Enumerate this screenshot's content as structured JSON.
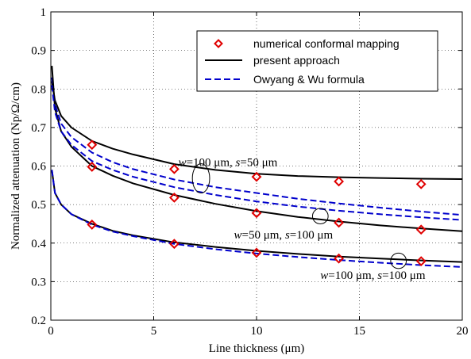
{
  "chart_data": {
    "type": "line",
    "xlabel": "Line thickness (μm)",
    "ylabel": "Normalized attenuation (Np/Ω/cm)",
    "xlim": [
      0,
      20
    ],
    "ylim": [
      0.2,
      1.0
    ],
    "xticks": [
      0,
      5,
      10,
      15,
      20
    ],
    "yticks": [
      0.2,
      0.3,
      0.4,
      0.5,
      0.6,
      0.7,
      0.8,
      0.9,
      1.0
    ],
    "xtick_labels": [
      "0",
      "5",
      "10",
      "15",
      "20"
    ],
    "ytick_labels": [
      "0.2",
      "0.3",
      "0.4",
      "0.5",
      "0.6",
      "0.7",
      "0.8",
      "0.9",
      "1"
    ],
    "grid": "dotted",
    "legend_position": "top-right",
    "legend": [
      {
        "label": "numerical conformal mapping",
        "marker": "diamond",
        "color": "#e00000"
      },
      {
        "label": "present approach",
        "line": "solid",
        "color": "#000000"
      },
      {
        "label": "Owyang & Wu formula",
        "line": "dashed",
        "color": "#0000cc"
      }
    ],
    "series": [
      {
        "group": "A",
        "kind": "present approach",
        "color": "#000000",
        "dash": "solid",
        "x": [
          0.05,
          0.2,
          0.5,
          1,
          2,
          3,
          4,
          6,
          8,
          10,
          12,
          14,
          16,
          18,
          20
        ],
        "y": [
          0.82,
          0.77,
          0.73,
          0.7,
          0.665,
          0.645,
          0.63,
          0.605,
          0.59,
          0.58,
          0.574,
          0.571,
          0.569,
          0.567,
          0.566
        ]
      },
      {
        "group": "A",
        "kind": "Owyang & Wu formula",
        "color": "#0000cc",
        "dash": "dashed",
        "x": [
          0.05,
          0.2,
          0.5,
          1,
          2,
          3,
          4,
          6,
          8,
          10,
          12,
          14,
          16,
          18,
          20
        ],
        "y": [
          0.83,
          0.76,
          0.71,
          0.675,
          0.635,
          0.61,
          0.592,
          0.565,
          0.545,
          0.53,
          0.515,
          0.503,
          0.492,
          0.482,
          0.473
        ]
      },
      {
        "group": "B",
        "kind": "present approach",
        "color": "#000000",
        "dash": "solid",
        "x": [
          0.05,
          0.2,
          0.5,
          1,
          2,
          3,
          4,
          6,
          8,
          10,
          12,
          14,
          16,
          18,
          20
        ],
        "y": [
          0.86,
          0.75,
          0.69,
          0.65,
          0.6,
          0.575,
          0.555,
          0.525,
          0.502,
          0.483,
          0.468,
          0.456,
          0.446,
          0.438,
          0.431
        ]
      },
      {
        "group": "B",
        "kind": "Owyang & Wu formula",
        "color": "#0000cc",
        "dash": "dashed",
        "x": [
          0.05,
          0.2,
          0.5,
          1,
          2,
          3,
          4,
          6,
          8,
          10,
          12,
          14,
          16,
          18,
          20
        ],
        "y": [
          0.81,
          0.74,
          0.69,
          0.655,
          0.613,
          0.59,
          0.572,
          0.545,
          0.525,
          0.508,
          0.495,
          0.484,
          0.475,
          0.467,
          0.46
        ]
      },
      {
        "group": "C",
        "kind": "present approach",
        "color": "#000000",
        "dash": "solid",
        "x": [
          0.05,
          0.2,
          0.5,
          1,
          2,
          3,
          4,
          6,
          8,
          10,
          12,
          14,
          16,
          18,
          20
        ],
        "y": [
          0.59,
          0.53,
          0.5,
          0.475,
          0.45,
          0.432,
          0.42,
          0.402,
          0.39,
          0.38,
          0.372,
          0.365,
          0.36,
          0.355,
          0.351
        ]
      },
      {
        "group": "C",
        "kind": "Owyang & Wu formula",
        "color": "#0000cc",
        "dash": "dashed",
        "x": [
          0.05,
          0.2,
          0.5,
          1,
          2,
          3,
          4,
          6,
          8,
          10,
          12,
          14,
          16,
          18,
          20
        ],
        "y": [
          0.59,
          0.53,
          0.5,
          0.475,
          0.448,
          0.43,
          0.418,
          0.398,
          0.384,
          0.373,
          0.364,
          0.356,
          0.349,
          0.343,
          0.338
        ]
      }
    ],
    "markers": [
      {
        "group": "A",
        "x": [
          2,
          6,
          10,
          14,
          18
        ],
        "y": [
          0.655,
          0.592,
          0.572,
          0.56,
          0.553
        ]
      },
      {
        "group": "B",
        "x": [
          2,
          6,
          10,
          14,
          18
        ],
        "y": [
          0.598,
          0.518,
          0.478,
          0.453,
          0.435
        ]
      },
      {
        "group": "C",
        "x": [
          2,
          6,
          10,
          14,
          18
        ],
        "y": [
          0.448,
          0.398,
          0.375,
          0.36,
          0.353
        ]
      }
    ],
    "annotations": [
      {
        "text_parts": [
          {
            "t": "w",
            "i": true
          },
          {
            "t": "=100 μm, ",
            "i": false
          },
          {
            "t": "s",
            "i": true
          },
          {
            "t": "=50 μm",
            "i": false
          }
        ],
        "x": 6.2,
        "y": 0.6
      },
      {
        "text_parts": [
          {
            "t": "w",
            "i": true
          },
          {
            "t": "=50 μm, ",
            "i": false
          },
          {
            "t": "s",
            "i": true
          },
          {
            "t": "=100 μm",
            "i": false
          }
        ],
        "x": 8.9,
        "y": 0.412
      },
      {
        "text_parts": [
          {
            "t": "w",
            "i": true
          },
          {
            "t": "=100 μm, ",
            "i": false
          },
          {
            "t": "s",
            "i": true
          },
          {
            "t": "=100 μm",
            "i": false
          }
        ],
        "x": 13.1,
        "y": 0.307
      }
    ],
    "ellipses": [
      {
        "cx": 7.3,
        "cy": 0.568,
        "rx": 0.42,
        "ry": 0.038
      },
      {
        "cx": 13.1,
        "cy": 0.47,
        "rx": 0.38,
        "ry": 0.02
      },
      {
        "cx": 16.9,
        "cy": 0.354,
        "rx": 0.38,
        "ry": 0.02
      }
    ]
  }
}
